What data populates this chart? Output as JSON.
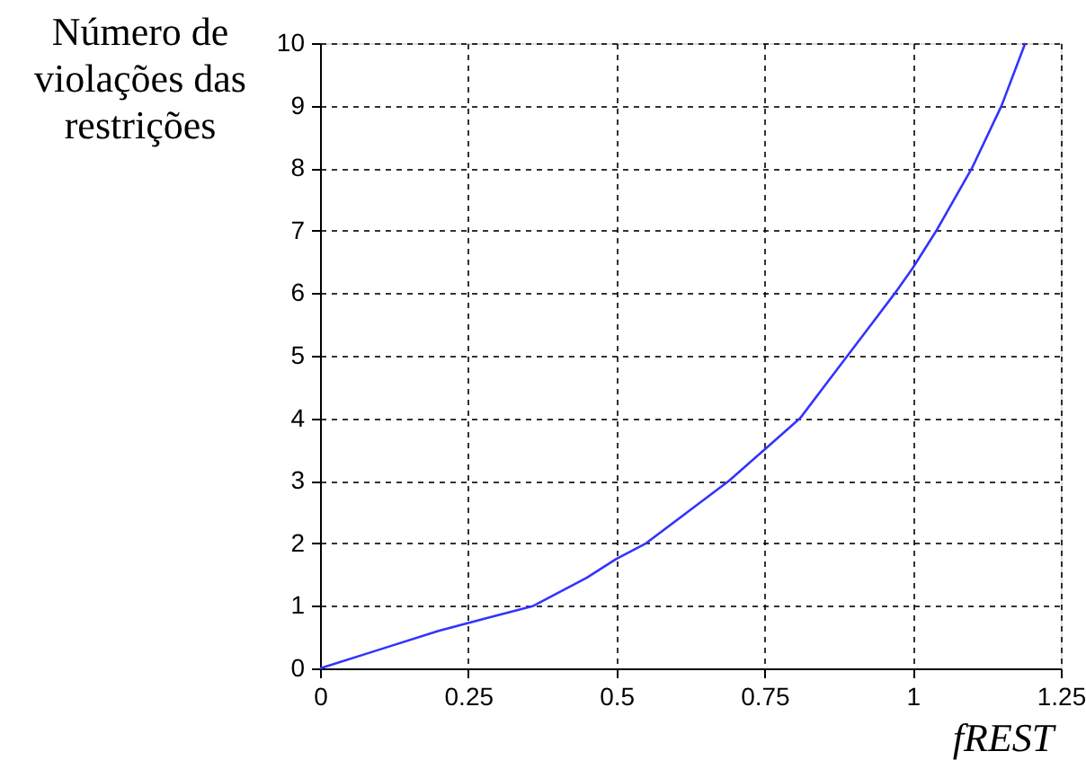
{
  "chart_data": {
    "type": "line",
    "ylabel": "Número de\nviolações das\nrestrições",
    "xlabel": "fREST",
    "series": [
      {
        "color": "#3333ff",
        "x": [
          0,
          0.1,
          0.2,
          0.28,
          0.36,
          0.45,
          0.5,
          0.55,
          0.62,
          0.69,
          0.75,
          0.81,
          0.85,
          0.89,
          0.93,
          0.97,
          1.0,
          1.04,
          1.1,
          1.15,
          1.19
        ],
        "values": [
          0,
          0.3,
          0.6,
          0.8,
          1.0,
          1.45,
          1.75,
          2.0,
          2.5,
          3.0,
          3.5,
          4.0,
          4.5,
          5.0,
          5.5,
          6.0,
          6.4,
          7.0,
          8.0,
          9.0,
          10.0
        ]
      }
    ],
    "xlim": [
      0,
      1.25
    ],
    "xticks": [
      0,
      0.25,
      0.5,
      0.75,
      1,
      1.25
    ],
    "ylim": [
      0,
      10
    ],
    "yticks": [
      0,
      1,
      2,
      3,
      4,
      5,
      6,
      7,
      8,
      9,
      10
    ],
    "grid": true,
    "line_style": "solid",
    "marker": "none"
  }
}
